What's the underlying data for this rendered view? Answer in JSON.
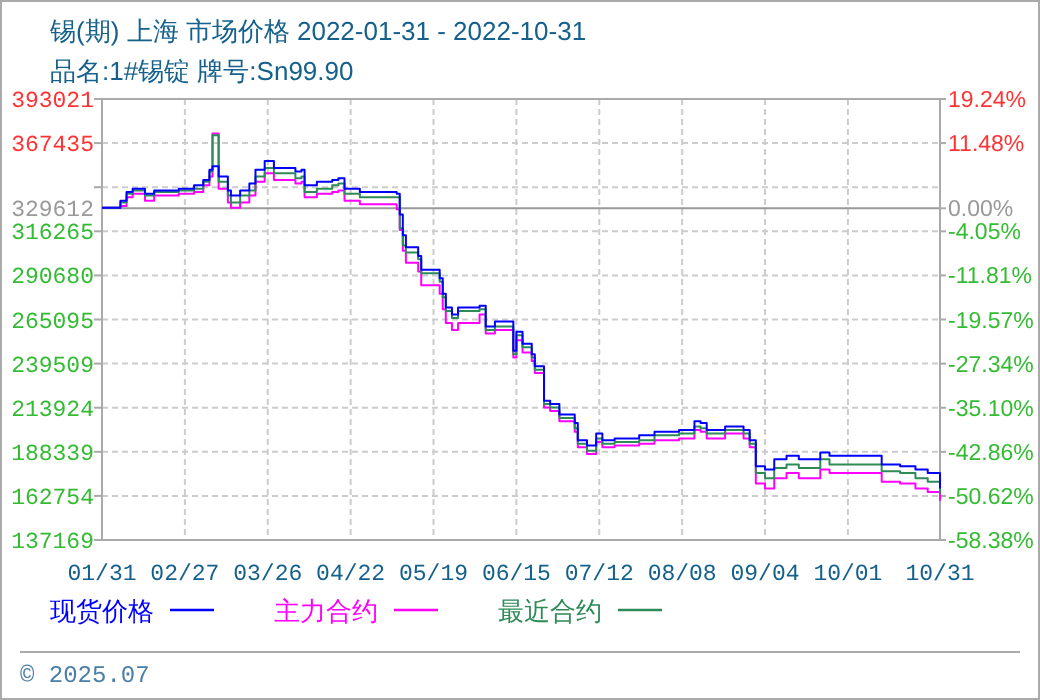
{
  "chart_data": {
    "type": "step",
    "title": "锡(期) 上海 市场价格 2022-01-31 - 2022-10-31",
    "subtitle": "品名:1#锡锭 牌号:Sn99.90",
    "x": [
      "2022-01-31",
      "2022-02-05",
      "2022-02-06",
      "2022-02-08",
      "2022-02-10",
      "2022-02-14",
      "2022-02-17",
      "2022-02-25",
      "2022-03-02",
      "2022-03-05",
      "2022-03-07",
      "2022-03-08",
      "2022-03-10",
      "2022-03-13",
      "2022-03-14",
      "2022-03-17",
      "2022-03-20",
      "2022-03-22",
      "2022-03-25",
      "2022-03-28",
      "2022-04-04",
      "2022-04-06",
      "2022-04-07",
      "2022-04-11",
      "2022-04-16",
      "2022-04-18",
      "2022-04-20",
      "2022-04-25",
      "2022-05-07",
      "2022-05-08",
      "2022-05-09",
      "2022-05-10",
      "2022-05-14",
      "2022-05-15",
      "2022-05-21",
      "2022-05-22",
      "2022-05-23",
      "2022-05-25",
      "2022-05-27",
      "2022-06-03",
      "2022-06-05",
      "2022-06-08",
      "2022-06-11",
      "2022-06-14",
      "2022-06-15",
      "2022-06-17",
      "2022-06-20",
      "2022-06-21",
      "2022-06-24",
      "2022-06-26",
      "2022-06-29",
      "2022-07-04",
      "2022-07-05",
      "2022-07-08",
      "2022-07-11",
      "2022-07-13",
      "2022-07-17",
      "2022-07-25",
      "2022-07-30",
      "2022-08-04",
      "2022-08-07",
      "2022-08-12",
      "2022-08-14",
      "2022-08-16",
      "2022-08-22",
      "2022-08-28",
      "2022-08-30",
      "2022-09-01",
      "2022-09-04",
      "2022-09-07",
      "2022-09-11",
      "2022-09-15",
      "2022-09-22",
      "2022-09-25",
      "2022-10-10",
      "2022-10-12",
      "2022-10-18",
      "2022-10-23",
      "2022-10-27",
      "2022-10-31"
    ],
    "series": [
      {
        "name": "现货价格",
        "color": "#0000ff",
        "values": [
          330000,
          330000,
          334000,
          339000,
          341000,
          338000,
          340000,
          341000,
          343000,
          346000,
          352000,
          354000,
          348000,
          340000,
          337000,
          340000,
          344000,
          352000,
          357000,
          353000,
          351000,
          352000,
          343000,
          345000,
          346000,
          347000,
          341000,
          339000,
          338000,
          326000,
          314000,
          307000,
          302000,
          294000,
          289000,
          280000,
          272000,
          268000,
          272000,
          273000,
          261000,
          264000,
          264000,
          247000,
          258000,
          251000,
          245000,
          238000,
          218000,
          216000,
          210000,
          205000,
          195000,
          192000,
          199000,
          195000,
          196000,
          198000,
          200000,
          200000,
          201000,
          206000,
          205000,
          201000,
          203000,
          201000,
          195000,
          180000,
          178000,
          184000,
          186000,
          184000,
          188000,
          186000,
          186000,
          181000,
          180000,
          178000,
          176000,
          167000
        ]
      },
      {
        "name": "主力合约",
        "color": "#ff00ff",
        "values": [
          330000,
          330000,
          331000,
          336000,
          338000,
          334000,
          337000,
          338000,
          339000,
          343000,
          348000,
          373000,
          341000,
          333000,
          330000,
          333000,
          337000,
          345000,
          350000,
          346000,
          344000,
          345000,
          336000,
          338000,
          339000,
          340000,
          334000,
          332000,
          329000,
          317000,
          305000,
          298000,
          293000,
          285000,
          280000,
          271000,
          263000,
          259000,
          263000,
          268000,
          257000,
          259000,
          259000,
          243000,
          253000,
          246000,
          241000,
          234000,
          214000,
          212000,
          206000,
          200000,
          191000,
          187000,
          194000,
          191000,
          192000,
          193000,
          195000,
          195000,
          196000,
          201000,
          200000,
          196000,
          199000,
          196000,
          191000,
          170000,
          167000,
          173000,
          176000,
          173000,
          178000,
          176000,
          176000,
          171000,
          170000,
          167000,
          165000,
          160000
        ]
      },
      {
        "name": "最近合约",
        "color": "#2e8b57",
        "values": [
          330000,
          330000,
          333000,
          338000,
          340000,
          337000,
          339000,
          340000,
          341000,
          345000,
          351000,
          372000,
          345000,
          337000,
          333000,
          337000,
          340000,
          348000,
          353000,
          350000,
          347000,
          348000,
          339000,
          341000,
          343000,
          344000,
          338000,
          336000,
          336000,
          318000,
          308000,
          304000,
          300000,
          292000,
          287000,
          278000,
          270000,
          266000,
          270000,
          271000,
          259000,
          261000,
          261000,
          245000,
          256000,
          249000,
          243000,
          236000,
          216000,
          214000,
          208000,
          202000,
          193000,
          189000,
          196000,
          193000,
          194000,
          195000,
          198000,
          198000,
          199000,
          203000,
          202000,
          199000,
          201000,
          199000,
          193000,
          176000,
          173000,
          179000,
          181000,
          179000,
          184000,
          181000,
          181000,
          177000,
          176000,
          173000,
          171000,
          164000
        ]
      }
    ],
    "xlim": [
      "2022-01-31",
      "2022-10-31"
    ],
    "xticks": [
      {
        "value": "2022-01-31",
        "label": "01/31"
      },
      {
        "value": "2022-02-27",
        "label": "02/27"
      },
      {
        "value": "2022-03-26",
        "label": "03/26"
      },
      {
        "value": "2022-04-22",
        "label": "04/22"
      },
      {
        "value": "2022-05-19",
        "label": "05/19"
      },
      {
        "value": "2022-06-15",
        "label": "06/15"
      },
      {
        "value": "2022-07-12",
        "label": "07/12"
      },
      {
        "value": "2022-08-08",
        "label": "08/08"
      },
      {
        "value": "2022-09-04",
        "label": "09/04"
      },
      {
        "value": "2022-10-01",
        "label": "10/01"
      },
      {
        "value": "2022-10-31",
        "label": "10/31"
      }
    ],
    "ylim": [
      137169,
      393021
    ],
    "yticks": [
      137169,
      162754,
      188339,
      213924,
      239509,
      265095,
      290680,
      316265,
      {
        "value": 341850,
        "label": null
      },
      367435,
      393021
    ],
    "y2lim": [
      -58.38,
      19.24
    ],
    "y2ticks": [
      {
        "value": -58.38,
        "label": "-58.38%"
      },
      {
        "value": -50.62,
        "label": "-50.62%"
      },
      {
        "value": -42.86,
        "label": "-42.86%"
      },
      {
        "value": -35.1,
        "label": "-35.10%"
      },
      {
        "value": -27.34,
        "label": "-27.34%"
      },
      {
        "value": -19.57,
        "label": "-19.57%"
      },
      {
        "value": -11.81,
        "label": "-11.81%"
      },
      {
        "value": -4.05,
        "label": "-4.05%"
      },
      {
        "value": 0,
        "label": "0.00%"
      },
      {
        "value": 11.48,
        "label": "11.48%"
      },
      {
        "value": 19.24,
        "label": "19.24%"
      }
    ],
    "ref_lines": [
      {
        "axis": "y",
        "value": 329612,
        "label": "329612",
        "color": "#999999"
      }
    ],
    "grid": true,
    "legend": "bottom",
    "annotations": [
      "© 2025.07"
    ]
  }
}
